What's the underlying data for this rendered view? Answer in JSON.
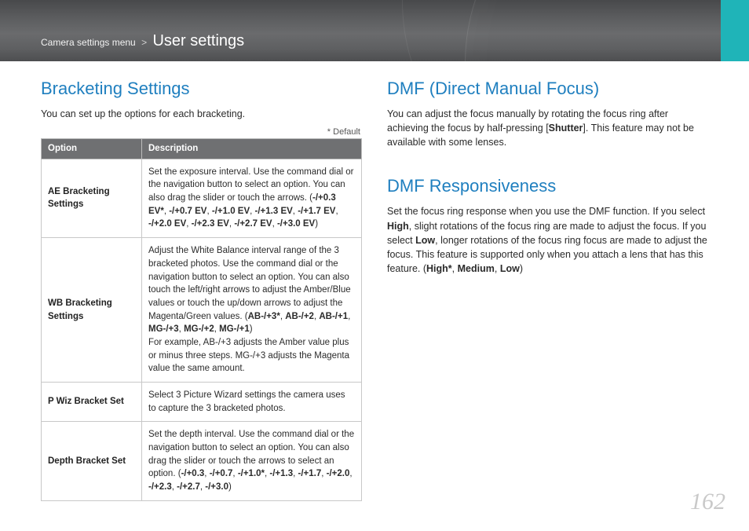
{
  "header": {
    "breadcrumb_category": "Camera settings menu",
    "breadcrumb_sep": ">",
    "breadcrumb_active": "User settings",
    "accent_color": "#1fb4b8"
  },
  "left": {
    "title": "Bracketing Settings",
    "intro": "You can set up the options for each bracketing.",
    "default_mark": "* Default",
    "table": {
      "headers": {
        "option": "Option",
        "description": "Description"
      },
      "rows": [
        {
          "option": "AE Bracketing Settings",
          "desc_pre": "Set the exposure interval. Use the command dial or the navigation button to select an option. You can also drag the slider or touch the arrows. (",
          "values": [
            "-/+0.3 EV*",
            "-/+0.7 EV",
            "-/+1.0 EV",
            "-/+1.3 EV",
            "-/+1.7 EV",
            "-/+2.0 EV",
            "-/+2.3 EV",
            "-/+2.7 EV",
            "-/+3.0 EV"
          ],
          "desc_post": ")"
        },
        {
          "option": "WB Bracketing Settings",
          "desc_pre": "Adjust the White Balance interval range of the 3 bracketed photos. Use the command dial or the navigation button to select an option. You can also touch the left/right arrows to adjust the Amber/Blue values or touch the up/down arrows to adjust the Magenta/Green values. (",
          "values": [
            "AB-/+3*",
            "AB-/+2",
            "AB-/+1",
            "MG-/+3",
            "MG-/+2",
            "MG-/+1"
          ],
          "desc_post": ")",
          "desc_tail": "For example, AB-/+3 adjusts the Amber value plus or minus three steps. MG-/+3 adjusts the Magenta value the same amount."
        },
        {
          "option": "P Wiz Bracket Set",
          "desc_plain": "Select 3 Picture Wizard settings the camera uses to capture the 3 bracketed photos."
        },
        {
          "option": "Depth Bracket Set",
          "desc_pre": "Set the depth interval. Use the command dial or the navigation button to select an option. You can also drag the slider or touch the arrows to select an option. (",
          "values": [
            "-/+0.3",
            "-/+0.7",
            "-/+1.0*",
            "-/+1.3",
            "-/+1.7",
            "-/+2.0",
            "-/+2.3",
            "-/+2.7",
            "-/+3.0"
          ],
          "desc_post": ")"
        }
      ]
    }
  },
  "right": {
    "dmf": {
      "title": "DMF (Direct Manual Focus)",
      "body_pre": "You can adjust the focus manually by rotating the focus ring after achieving the focus by half-pressing [",
      "body_bold": "Shutter",
      "body_post": "]. This feature may not be available with some lenses."
    },
    "resp": {
      "title": "DMF Responsiveness",
      "body_1": "Set the focus ring response when you use the DMF function. If you select ",
      "b1": "High",
      "body_2": ", slight rotations of the focus ring are made to adjust the focus. If you select ",
      "b2": "Low",
      "body_3": ", longer rotations of the focus ring focus are made to adjust the focus. This feature is supported only when you attach a lens that has this feature. (",
      "opts": [
        "High*",
        "Medium",
        "Low"
      ],
      "body_4": ")"
    }
  },
  "page_number": "162",
  "style": {
    "title_color": "#1f7fbf",
    "header_bg": "#5c5d5f",
    "table_header_bg": "#6f7072",
    "border_color": "#c8c8c8",
    "pagenum_color": "#c9c9c9"
  }
}
